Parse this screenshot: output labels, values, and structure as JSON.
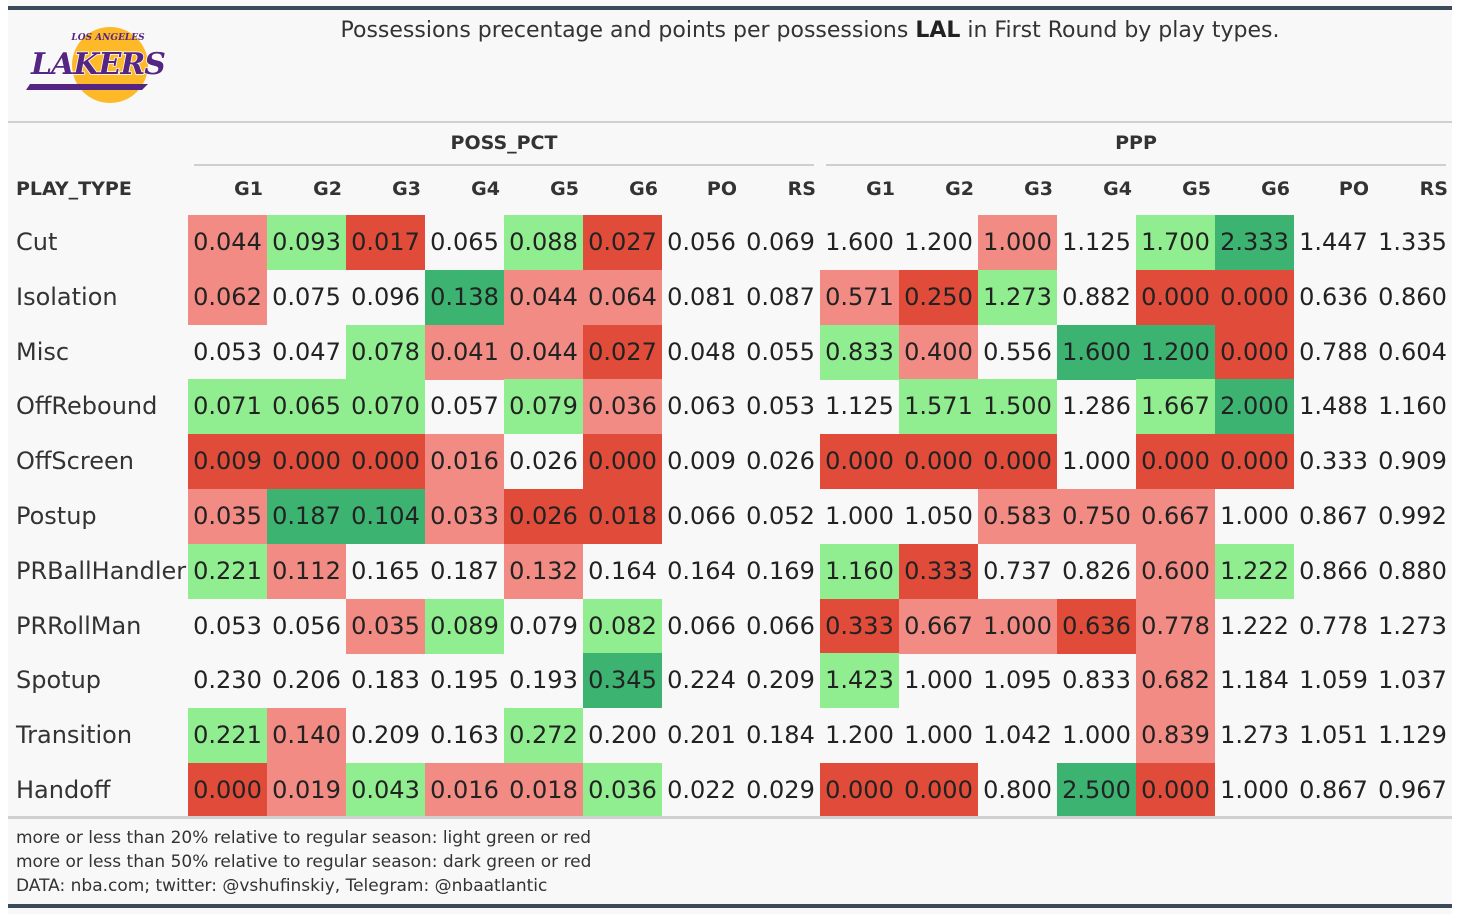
{
  "title": {
    "before": "Possessions precentage and points per possessions ",
    "team": "LAL",
    "after": " in First Round by play types."
  },
  "logo": {
    "top_text": "LOS ANGELES",
    "word": "LAKERS"
  },
  "groups": [
    "POSS_PCT",
    "PPP"
  ],
  "row_header": "PLAY_TYPE",
  "columns": [
    "G1",
    "G2",
    "G3",
    "G4",
    "G5",
    "G6",
    "PO",
    "RS"
  ],
  "colors": {
    "dark_red": "#e04b3a",
    "light_red": "#f28b84",
    "light_green": "#90ee90",
    "dark_green": "#3cb371",
    "background": "#f8f8f8",
    "rule": "#3a4a5a"
  },
  "chart_data": {
    "type": "table",
    "rows": [
      {
        "play_type": "Cut",
        "poss_pct": [
          "0.044",
          "0.093",
          "0.017",
          "0.065",
          "0.088",
          "0.027",
          "0.056",
          "0.069"
        ],
        "poss_cls": [
          "lr",
          "lg",
          "dr",
          "",
          "lg",
          "dr",
          "",
          ""
        ],
        "ppp": [
          "1.600",
          "1.200",
          "1.000",
          "1.125",
          "1.700",
          "2.333",
          "1.447",
          "1.335"
        ],
        "ppp_cls": [
          "",
          "",
          "lr",
          "",
          "lg",
          "dg",
          "",
          ""
        ]
      },
      {
        "play_type": "Isolation",
        "poss_pct": [
          "0.062",
          "0.075",
          "0.096",
          "0.138",
          "0.044",
          "0.064",
          "0.081",
          "0.087"
        ],
        "poss_cls": [
          "lr",
          "",
          "",
          "dg",
          "lr",
          "lr",
          "",
          ""
        ],
        "ppp": [
          "0.571",
          "0.250",
          "1.273",
          "0.882",
          "0.000",
          "0.000",
          "0.636",
          "0.860"
        ],
        "ppp_cls": [
          "lr",
          "dr",
          "lg",
          "",
          "dr",
          "dr",
          "",
          ""
        ]
      },
      {
        "play_type": "Misc",
        "poss_pct": [
          "0.053",
          "0.047",
          "0.078",
          "0.041",
          "0.044",
          "0.027",
          "0.048",
          "0.055"
        ],
        "poss_cls": [
          "",
          "",
          "lg",
          "lr",
          "lr",
          "dr",
          "",
          ""
        ],
        "ppp": [
          "0.833",
          "0.400",
          "0.556",
          "1.600",
          "1.200",
          "0.000",
          "0.788",
          "0.604"
        ],
        "ppp_cls": [
          "lg",
          "lr",
          "",
          "dg",
          "dg",
          "dr",
          "",
          ""
        ]
      },
      {
        "play_type": "OffRebound",
        "poss_pct": [
          "0.071",
          "0.065",
          "0.070",
          "0.057",
          "0.079",
          "0.036",
          "0.063",
          "0.053"
        ],
        "poss_cls": [
          "lg",
          "lg",
          "lg",
          "",
          "lg",
          "lr",
          "",
          ""
        ],
        "ppp": [
          "1.125",
          "1.571",
          "1.500",
          "1.286",
          "1.667",
          "2.000",
          "1.488",
          "1.160"
        ],
        "ppp_cls": [
          "",
          "lg",
          "lg",
          "",
          "lg",
          "dg",
          "",
          ""
        ]
      },
      {
        "play_type": "OffScreen",
        "poss_pct": [
          "0.009",
          "0.000",
          "0.000",
          "0.016",
          "0.026",
          "0.000",
          "0.009",
          "0.026"
        ],
        "poss_cls": [
          "dr",
          "dr",
          "dr",
          "lr",
          "",
          "dr",
          "",
          ""
        ],
        "ppp": [
          "0.000",
          "0.000",
          "0.000",
          "1.000",
          "0.000",
          "0.000",
          "0.333",
          "0.909"
        ],
        "ppp_cls": [
          "dr",
          "dr",
          "dr",
          "",
          "dr",
          "dr",
          "",
          ""
        ]
      },
      {
        "play_type": "Postup",
        "poss_pct": [
          "0.035",
          "0.187",
          "0.104",
          "0.033",
          "0.026",
          "0.018",
          "0.066",
          "0.052"
        ],
        "poss_cls": [
          "lr",
          "dg",
          "dg",
          "lr",
          "dr",
          "dr",
          "",
          ""
        ],
        "ppp": [
          "1.000",
          "1.050",
          "0.583",
          "0.750",
          "0.667",
          "1.000",
          "0.867",
          "0.992"
        ],
        "ppp_cls": [
          "",
          "",
          "lr",
          "lr",
          "lr",
          "",
          "",
          ""
        ]
      },
      {
        "play_type": "PRBallHandler",
        "poss_pct": [
          "0.221",
          "0.112",
          "0.165",
          "0.187",
          "0.132",
          "0.164",
          "0.164",
          "0.169"
        ],
        "poss_cls": [
          "lg",
          "lr",
          "",
          "",
          "lr",
          "",
          "",
          ""
        ],
        "ppp": [
          "1.160",
          "0.333",
          "0.737",
          "0.826",
          "0.600",
          "1.222",
          "0.866",
          "0.880"
        ],
        "ppp_cls": [
          "lg",
          "dr",
          "",
          "",
          "lr",
          "lg",
          "",
          ""
        ]
      },
      {
        "play_type": "PRRollMan",
        "poss_pct": [
          "0.053",
          "0.056",
          "0.035",
          "0.089",
          "0.079",
          "0.082",
          "0.066",
          "0.066"
        ],
        "poss_cls": [
          "",
          "",
          "lr",
          "lg",
          "",
          "lg",
          "",
          ""
        ],
        "ppp": [
          "0.333",
          "0.667",
          "1.000",
          "0.636",
          "0.778",
          "1.222",
          "0.778",
          "1.273"
        ],
        "ppp_cls": [
          "dr",
          "lr",
          "lr",
          "dr",
          "lr",
          "",
          "",
          ""
        ]
      },
      {
        "play_type": "Spotup",
        "poss_pct": [
          "0.230",
          "0.206",
          "0.183",
          "0.195",
          "0.193",
          "0.345",
          "0.224",
          "0.209"
        ],
        "poss_cls": [
          "",
          "",
          "",
          "",
          "",
          "dg",
          "",
          ""
        ],
        "ppp": [
          "1.423",
          "1.000",
          "1.095",
          "0.833",
          "0.682",
          "1.184",
          "1.059",
          "1.037"
        ],
        "ppp_cls": [
          "lg",
          "",
          "",
          "",
          "lr",
          "",
          "",
          ""
        ]
      },
      {
        "play_type": "Transition",
        "poss_pct": [
          "0.221",
          "0.140",
          "0.209",
          "0.163",
          "0.272",
          "0.200",
          "0.201",
          "0.184"
        ],
        "poss_cls": [
          "lg",
          "lr",
          "",
          "",
          "lg",
          "",
          "",
          ""
        ],
        "ppp": [
          "1.200",
          "1.000",
          "1.042",
          "1.000",
          "0.839",
          "1.273",
          "1.051",
          "1.129"
        ],
        "ppp_cls": [
          "",
          "",
          "",
          "",
          "lr",
          "",
          "",
          ""
        ]
      },
      {
        "play_type": "Handoff",
        "poss_pct": [
          "0.000",
          "0.019",
          "0.043",
          "0.016",
          "0.018",
          "0.036",
          "0.022",
          "0.029"
        ],
        "poss_cls": [
          "dr",
          "lr",
          "lg",
          "lr",
          "lr",
          "lg",
          "",
          ""
        ],
        "ppp": [
          "0.000",
          "0.000",
          "0.800",
          "2.500",
          "0.000",
          "1.000",
          "0.867",
          "0.967"
        ],
        "ppp_cls": [
          "dr",
          "dr",
          "",
          "dg",
          "dr",
          "",
          "",
          ""
        ]
      }
    ]
  },
  "notes": [
    "more or less than 20% relative to regular season: light green or red",
    "more or less than 50% relative to regular season: dark green or red",
    "DATA: nba.com; twitter: @vshufinskiy, Telegram: @nbaatlantic"
  ]
}
